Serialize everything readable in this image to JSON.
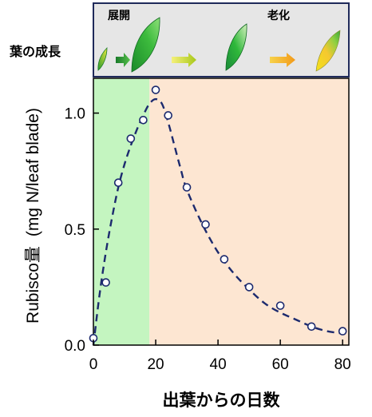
{
  "leaf_panel": {
    "row_label": "葉の成長",
    "stage_expansion": "展開",
    "stage_senescence": "老化",
    "leaf_icons": [
      "leaf-icon-young",
      "leaf-icon-expanded",
      "leaf-icon-mature",
      "leaf-icon-senescent"
    ],
    "arrow_icons": [
      "arrow-right-icon",
      "arrow-right-icon",
      "arrow-right-icon"
    ],
    "colors": {
      "panel_bg": "#e6e6e6",
      "panel_border": "#1f2a5a",
      "leaf_green": "#1a8a2a",
      "leaf_yellow": "#f2e21a",
      "arrow_green": "#2f9a3a",
      "arrow_yellowgreen": "#c9d21a",
      "arrow_orange": "#f2a21a"
    }
  },
  "chart_data": {
    "type": "scatter",
    "title": "",
    "xlabel": "出葉からの日数",
    "ylabel_main": "Rubisco量",
    "ylabel_unit": "(mg N/leaf blade)",
    "xlim": [
      0,
      82
    ],
    "ylim": [
      0,
      1.15
    ],
    "xticks": [
      0,
      20,
      40,
      60,
      80
    ],
    "yticks": [
      0.0,
      0.5,
      1.0
    ],
    "ytick_labels": [
      "0.0",
      "0.5",
      "1.0"
    ],
    "grid": false,
    "legend": "none",
    "series": [
      {
        "name": "",
        "x": [
          0,
          4,
          8,
          12,
          16,
          20,
          24,
          30,
          36,
          42,
          50,
          60,
          70,
          80
        ],
        "y": [
          0.03,
          0.27,
          0.7,
          0.89,
          0.97,
          1.1,
          0.99,
          0.68,
          0.52,
          0.37,
          0.25,
          0.17,
          0.08,
          0.06
        ]
      }
    ],
    "fitted_curve": {
      "x": [
        0,
        2,
        4,
        6,
        8,
        10,
        12,
        14,
        16,
        18,
        20,
        22,
        24,
        26,
        28,
        30,
        35,
        40,
        45,
        50,
        55,
        60,
        65,
        70,
        75,
        80
      ],
      "y": [
        0.0,
        0.22,
        0.4,
        0.55,
        0.68,
        0.78,
        0.86,
        0.93,
        0.99,
        1.04,
        1.06,
        1.04,
        0.96,
        0.86,
        0.76,
        0.67,
        0.52,
        0.4,
        0.31,
        0.24,
        0.18,
        0.14,
        0.11,
        0.08,
        0.06,
        0.05
      ]
    },
    "regions": [
      {
        "name": "expansion",
        "x_start": 0,
        "x_end": 18,
        "color": "#c4f5c0"
      },
      {
        "name": "senescence",
        "x_start": 18,
        "x_end": 82,
        "color": "#fde6d2"
      }
    ],
    "colors": {
      "curve": "#1c2a6e",
      "marker_edge": "#1c2a6e",
      "marker_fill": "#ffffff"
    }
  }
}
